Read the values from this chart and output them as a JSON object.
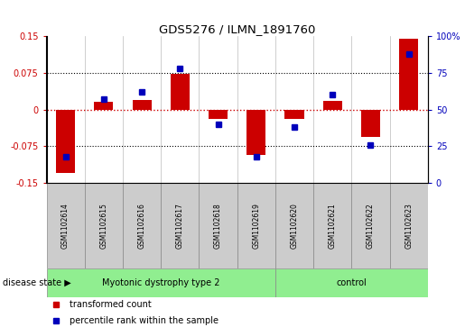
{
  "title": "GDS5276 / ILMN_1891760",
  "samples": [
    "GSM1102614",
    "GSM1102615",
    "GSM1102616",
    "GSM1102617",
    "GSM1102618",
    "GSM1102619",
    "GSM1102620",
    "GSM1102621",
    "GSM1102622",
    "GSM1102623"
  ],
  "red_values": [
    -0.13,
    0.015,
    0.02,
    0.072,
    -0.02,
    -0.092,
    -0.02,
    0.018,
    -0.055,
    0.145
  ],
  "blue_values": [
    18,
    57,
    62,
    78,
    40,
    18,
    38,
    60,
    26,
    88
  ],
  "ylim_left": [
    -0.15,
    0.15
  ],
  "ylim_right": [
    0,
    100
  ],
  "yticks_left": [
    -0.15,
    -0.075,
    0,
    0.075,
    0.15
  ],
  "yticks_right": [
    0,
    25,
    50,
    75,
    100
  ],
  "ytick_labels_left": [
    "-0.15",
    "-0.075",
    "0",
    "0.075",
    "0.15"
  ],
  "ytick_labels_right": [
    "0",
    "25",
    "50",
    "75",
    "100%"
  ],
  "red_color": "#CC0000",
  "blue_color": "#0000BB",
  "bg_color": "#FFFFFF",
  "bar_width": 0.5,
  "blue_marker_size": 5,
  "legend_red_label": "transformed count",
  "legend_blue_label": "percentile rank within the sample",
  "disease_state_label": "disease state",
  "group1_label": "Myotonic dystrophy type 2",
  "group2_label": "control",
  "group1_indices": [
    0,
    1,
    2,
    3,
    4,
    5
  ],
  "group2_indices": [
    6,
    7,
    8,
    9
  ],
  "sample_box_color": "#CCCCCC",
  "group_color": "#90EE90"
}
